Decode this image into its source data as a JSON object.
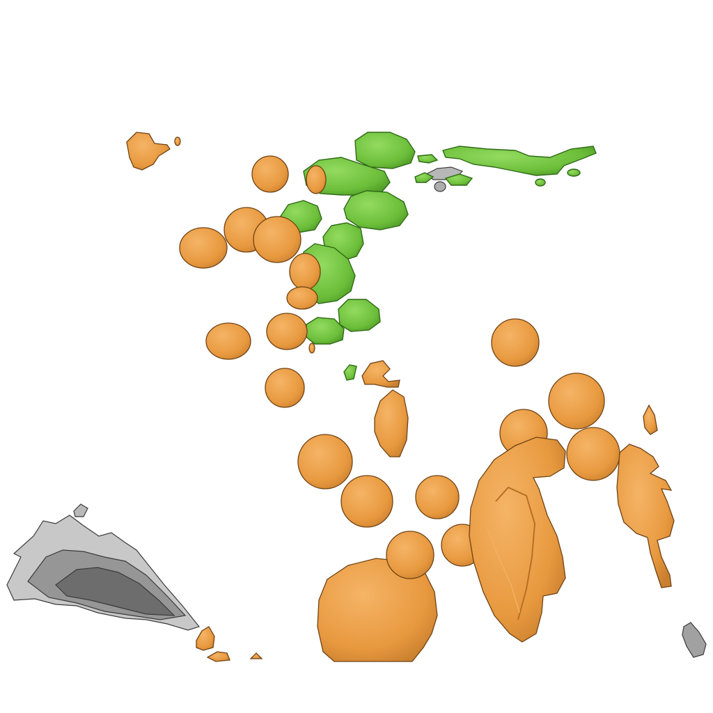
{
  "scene": {
    "kind": "3d-segmentation-render",
    "background": "#ffffff",
    "colors": {
      "orange_fill": "#E8993F",
      "orange_dark": "#B86F24",
      "orange_light": "#F2B062",
      "green_fill": "#6CBE3A",
      "green_dark": "#3F8A1C",
      "green_light": "#8FD95C",
      "gray_fill": "#8C8C8C",
      "gray_dark": "#4A4A4A",
      "outline": "#2b2b2b"
    },
    "segments": {
      "orange": "orange-blob-group",
      "green": "green-blob-group",
      "gray": "gray-blob-group"
    }
  }
}
